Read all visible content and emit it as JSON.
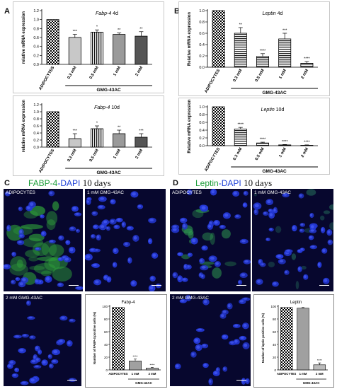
{
  "panels": {
    "A": {
      "letter": "A"
    },
    "B": {
      "letter": "B"
    },
    "C": {
      "letter": "C",
      "stain": "FABP-4",
      "dapi": "-DAPI",
      "days": "10 days"
    },
    "D": {
      "letter": "D",
      "stain": "Leptin",
      "dapi": "-DAPI",
      "days": "10 days"
    }
  },
  "colors": {
    "dapi_blue": "#1c3fd8",
    "stain_green": "#1e9e3a",
    "micro_bg": "#0a0a3a"
  },
  "micrographs": {
    "c_adipocytes": "ADIPOCYTES",
    "c_1mm": "1 mM GMG-43AC",
    "c_2mm": "2 mM GMG-43AC",
    "d_adipocytes": "ADIPOCYTES",
    "d_1mm": "1 mM GMG-43AC",
    "d_2mm": "2 mM GMG-43AC"
  },
  "chart_data": [
    {
      "id": "A-top",
      "type": "bar",
      "title": "Fabp-4",
      "title_suffix": "4d",
      "ylabel": "relative mRNA expression",
      "ylim": [
        0,
        1.2
      ],
      "yticks": [
        "0.0",
        "0.2",
        "0.4",
        "0.6",
        "0.8",
        "1.0",
        "1.2"
      ],
      "categories": [
        "ADIPOCYTES",
        "0.3 mM",
        "0.5 mM",
        "1 mM",
        "2 mM"
      ],
      "values": [
        1.0,
        0.6,
        0.72,
        0.67,
        0.63
      ],
      "errors": [
        0,
        0.07,
        0.05,
        0.03,
        0.1
      ],
      "sig": [
        "",
        "***",
        "*",
        "**",
        "**"
      ],
      "group_label": "GMG-43AC"
    },
    {
      "id": "A-bottom",
      "type": "bar",
      "title": "Fabp-4",
      "title_suffix": "10d",
      "ylabel": "relative mRNA expression",
      "ylim": [
        0,
        1.2
      ],
      "yticks": [
        "0.0",
        "0.2",
        "0.4",
        "0.6",
        "0.8",
        "1.0",
        "1.2"
      ],
      "categories": [
        "ADIPOCYTES",
        "0.3 mM",
        "0.5 mM",
        "1 mM",
        "2 mM"
      ],
      "values": [
        1.0,
        0.24,
        0.52,
        0.38,
        0.28
      ],
      "errors": [
        0,
        0.14,
        0.08,
        0.1,
        0.1
      ],
      "sig": [
        "",
        "***",
        "*",
        "**",
        "***"
      ],
      "group_label": "GMG-43AC"
    },
    {
      "id": "B-top",
      "type": "bar",
      "title": "Leptin",
      "title_suffix": "4d",
      "ylabel": "Relative mRNA expression",
      "ylim": [
        0,
        1.0
      ],
      "yticks": [
        "0.0",
        "0.2",
        "0.4",
        "0.6",
        "0.8",
        "1.0"
      ],
      "categories": [
        "ADIPOCYTES",
        "0.3 mM",
        "0.5 mM",
        "1 mM",
        "2 mM"
      ],
      "values": [
        1.0,
        0.6,
        0.19,
        0.5,
        0.07
      ],
      "errors": [
        0,
        0.1,
        0.05,
        0.1,
        0.03
      ],
      "sig": [
        "",
        "**",
        "****",
        "***",
        "****"
      ],
      "group_label": "GMG-43AC"
    },
    {
      "id": "B-bottom",
      "type": "bar",
      "title": "Leptin",
      "title_suffix": "10d",
      "ylabel": "Relative mRNA expression",
      "ylim": [
        0,
        1.0
      ],
      "yticks": [
        "0.0",
        "0.2",
        "0.4",
        "0.6",
        "0.8",
        "1.0"
      ],
      "categories": [
        "ADIPOCYTES",
        "0.3 mM",
        "0.5 mM",
        "1 mM",
        "2 mM"
      ],
      "values": [
        1.0,
        0.43,
        0.07,
        0.02,
        0.01
      ],
      "errors": [
        0,
        0.04,
        0.02,
        0.01,
        0.01
      ],
      "sig": [
        "",
        "****",
        "****",
        "****",
        "****"
      ],
      "group_label": "GMG-43AC"
    },
    {
      "id": "C-inset",
      "type": "bar",
      "title": "Fabp-4",
      "ylabel": "Number of FABP-4 positive cells (%)",
      "ylim": [
        0,
        100
      ],
      "yticks": [
        "0",
        "20",
        "40",
        "60",
        "80",
        "100"
      ],
      "categories": [
        "ADIPOCYTES",
        "1 mM",
        "2 mM"
      ],
      "values": [
        98,
        14,
        3
      ],
      "errors": [
        0,
        3,
        1
      ],
      "sig": [
        "",
        "****",
        "****"
      ],
      "group_label": "GMG-43AC"
    },
    {
      "id": "D-inset",
      "type": "bar",
      "title": "Leptin",
      "ylabel": "Number of leptin positive cells (%)",
      "ylim": [
        0,
        100
      ],
      "yticks": [
        "0",
        "20",
        "40",
        "60",
        "80",
        "100"
      ],
      "categories": [
        "ADIPOCYTES",
        "1 mM",
        "2 mM"
      ],
      "values": [
        98,
        97,
        8
      ],
      "errors": [
        0,
        1,
        3
      ],
      "sig": [
        "",
        "",
        "****"
      ],
      "group_label": "GMG-43AC"
    }
  ]
}
